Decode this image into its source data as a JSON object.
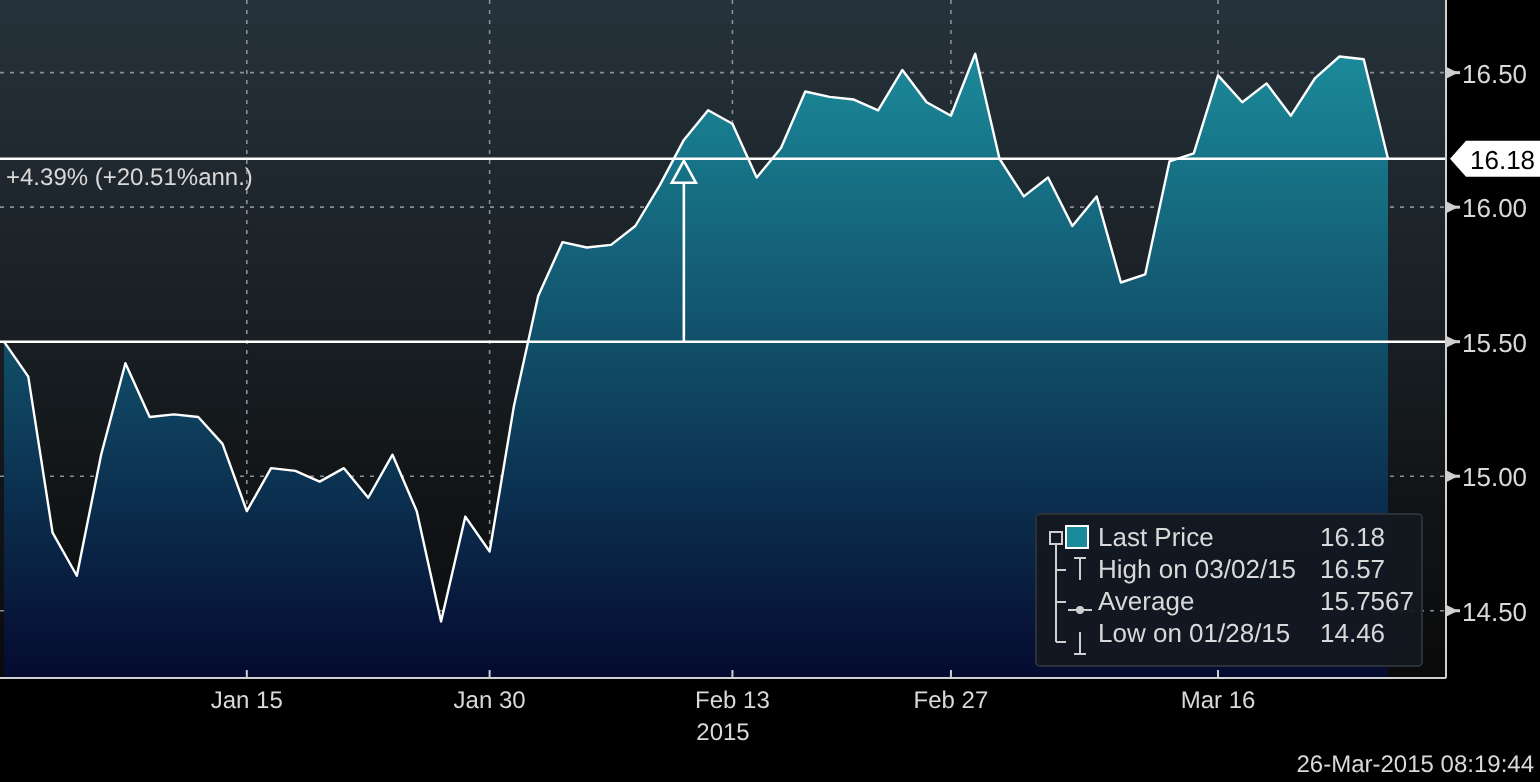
{
  "chart_data": {
    "type": "area",
    "xlabel": "2015",
    "categories": [
      null,
      null,
      null,
      null,
      null,
      null,
      null,
      null,
      null,
      null,
      "Jan 15",
      null,
      null,
      null,
      null,
      null,
      null,
      null,
      null,
      null,
      "Jan 30",
      null,
      null,
      null,
      null,
      null,
      null,
      null,
      null,
      null,
      "Feb 13",
      null,
      null,
      null,
      null,
      null,
      null,
      null,
      null,
      "Feb 27",
      null,
      null,
      null,
      null,
      null,
      null,
      null,
      null,
      null,
      null,
      "Mar 16",
      null,
      null,
      null,
      null,
      null,
      null,
      null
    ],
    "series": [
      {
        "name": "Last Price",
        "color": "#1b8a9a",
        "values": [
          15.5,
          15.37,
          14.79,
          14.63,
          15.08,
          15.42,
          15.22,
          15.23,
          15.22,
          15.12,
          14.87,
          15.03,
          15.02,
          14.98,
          15.03,
          14.92,
          15.08,
          14.87,
          14.46,
          14.85,
          14.72,
          15.26,
          15.67,
          15.87,
          15.85,
          15.86,
          15.93,
          16.08,
          16.25,
          16.36,
          16.31,
          16.11,
          16.22,
          16.43,
          16.41,
          16.4,
          16.36,
          16.51,
          16.39,
          16.34,
          16.57,
          16.18,
          16.04,
          16.11,
          15.93,
          16.04,
          15.72,
          15.75,
          16.17,
          16.2,
          16.49,
          16.39,
          16.46,
          16.34,
          16.48,
          16.56,
          16.55,
          16.18
        ]
      }
    ],
    "ylim": [
      14.25,
      16.77
    ],
    "yticks": [
      {
        "value": 14.5,
        "label": "14.50"
      },
      {
        "value": 15,
        "label": "15.00"
      },
      {
        "value": 15.5,
        "label": "15.50"
      },
      {
        "value": 16,
        "label": "16.00"
      },
      {
        "value": 16.5,
        "label": "16.50"
      }
    ],
    "ref_lines": [
      {
        "axis": "y",
        "value": 15.5,
        "label": null,
        "color": "#ffffff"
      },
      {
        "axis": "y",
        "value": 16.18,
        "label": "16.18",
        "color": "#ffffff"
      }
    ],
    "annotations": [
      "+4.39% (+20.51%ann.)",
      "16.18",
      "High on 03/02/15",
      "16.57",
      "Average",
      "15.7567",
      "Low on 01/28/15",
      "14.46",
      "26-Mar-2015 08:19:44"
    ],
    "grid": true,
    "legend": "bottom right"
  }
}
